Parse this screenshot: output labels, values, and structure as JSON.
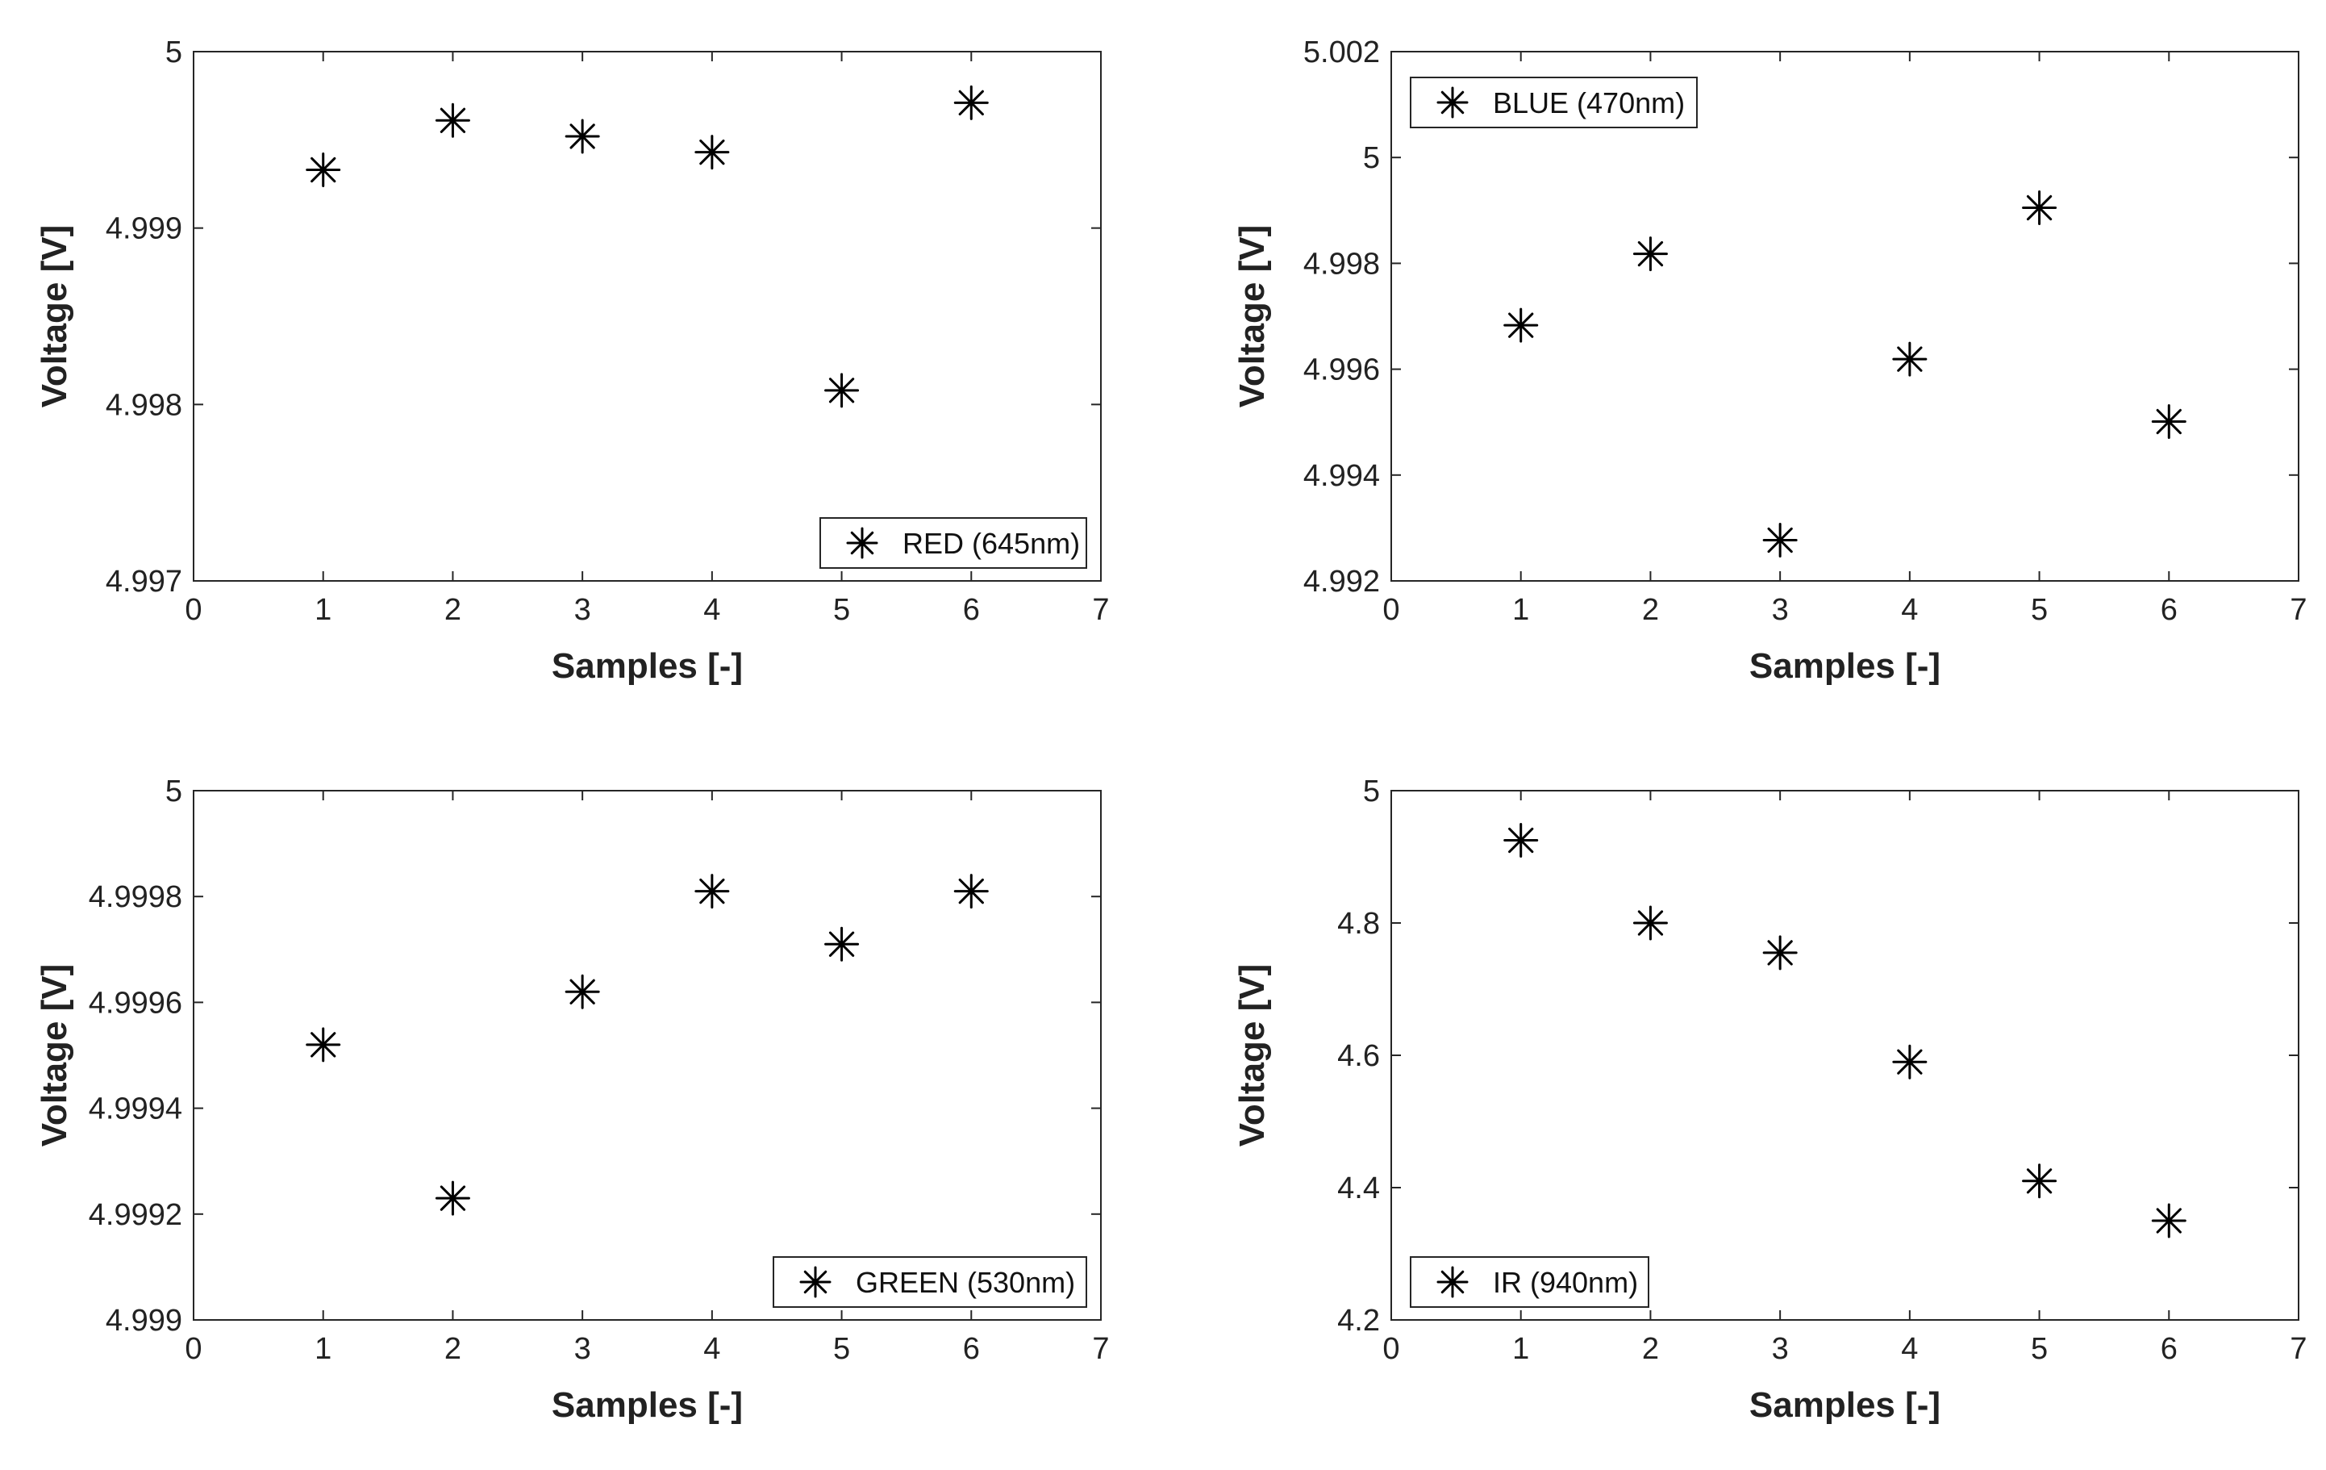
{
  "chart_data": [
    {
      "type": "scatter",
      "x": [
        1,
        2,
        3,
        4,
        5,
        6
      ],
      "y": [
        4.99933,
        4.99961,
        4.99952,
        4.99943,
        4.99808,
        4.99971
      ],
      "xlim": [
        0,
        7
      ],
      "ylim": [
        4.997,
        5
      ],
      "xticks": [
        "0",
        "1",
        "2",
        "3",
        "4",
        "5",
        "6",
        "7"
      ],
      "yticks": [
        "4.997",
        "4.998",
        "4.999",
        "5"
      ],
      "xlabel": "Samples [-]",
      "ylabel": "Voltage [V]",
      "legend": "RED (645nm)",
      "legend_position": "bottom-right",
      "marker": "asterisk",
      "color": "#000000",
      "grid": false
    },
    {
      "type": "scatter",
      "x": [
        1,
        2,
        3,
        4,
        5,
        6
      ],
      "y": [
        4.99683,
        4.99818,
        4.99277,
        4.99619,
        4.99905,
        4.99501
      ],
      "xlim": [
        0,
        7
      ],
      "ylim": [
        4.992,
        5.002
      ],
      "xticks": [
        "0",
        "1",
        "2",
        "3",
        "4",
        "5",
        "6",
        "7"
      ],
      "yticks": [
        "4.992",
        "4.994",
        "4.996",
        "4.998",
        "5",
        "5.002"
      ],
      "xlabel": "Samples [-]",
      "ylabel": "Voltage [V]",
      "legend": "BLUE (470nm)",
      "legend_position": "top-left",
      "marker": "asterisk",
      "color": "#000000",
      "grid": false
    },
    {
      "type": "scatter",
      "x": [
        1,
        2,
        3,
        4,
        5,
        6
      ],
      "y": [
        4.99952,
        4.99923,
        4.99962,
        4.99981,
        4.99971,
        4.99981
      ],
      "xlim": [
        0,
        7
      ],
      "ylim": [
        4.999,
        5
      ],
      "xticks": [
        "0",
        "1",
        "2",
        "3",
        "4",
        "5",
        "6",
        "7"
      ],
      "yticks": [
        "4.999",
        "4.9992",
        "4.9994",
        "4.9996",
        "4.9998",
        "5"
      ],
      "xlabel": "Samples [-]",
      "ylabel": "Voltage [V]",
      "legend": "GREEN (530nm)",
      "legend_position": "bottom-right",
      "marker": "asterisk",
      "color": "#000000",
      "grid": false
    },
    {
      "type": "scatter",
      "x": [
        1,
        2,
        3,
        4,
        5,
        6
      ],
      "y": [
        4.925,
        4.8,
        4.755,
        4.59,
        4.41,
        4.35
      ],
      "xlim": [
        0,
        7
      ],
      "ylim": [
        4.2,
        5
      ],
      "xticks": [
        "0",
        "1",
        "2",
        "3",
        "4",
        "5",
        "6",
        "7"
      ],
      "yticks": [
        "4.2",
        "4.4",
        "4.6",
        "4.8",
        "5"
      ],
      "xlabel": "Samples [-]",
      "ylabel": "Voltage [V]",
      "legend": "IR (940nm)",
      "legend_position": "bottom-left",
      "marker": "asterisk",
      "color": "#000000",
      "grid": false
    }
  ]
}
